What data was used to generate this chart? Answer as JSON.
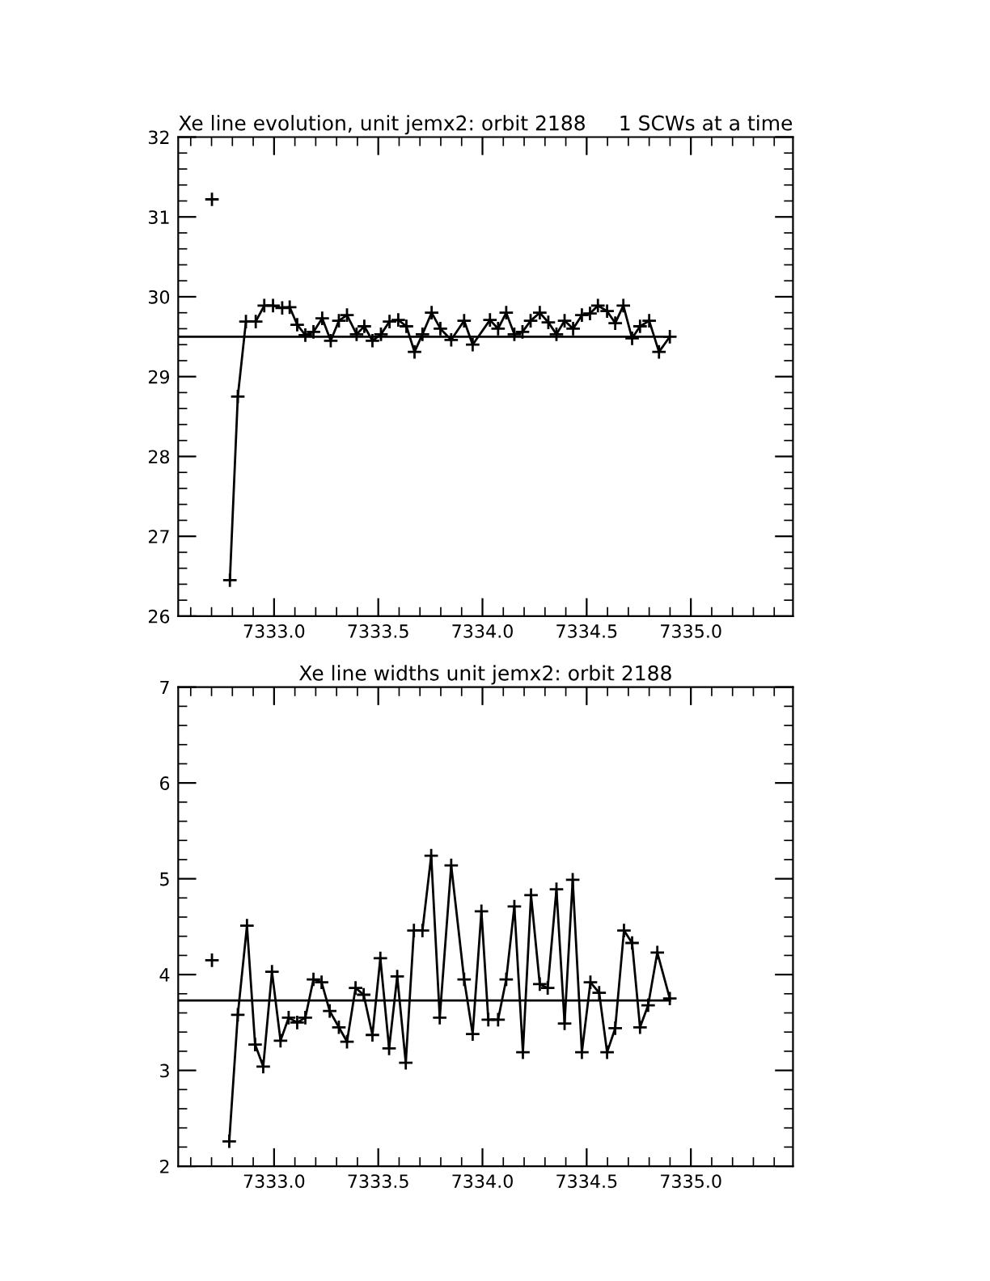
{
  "chart_data": [
    {
      "type": "line",
      "title": "Xe line evolution, unit jemx2: orbit 2188",
      "subtitle": "1 SCWs at a time",
      "xlim": [
        7332.54,
        7335.49
      ],
      "xticks": [
        {
          "value": 7333.0,
          "label": "7333.0"
        },
        {
          "value": 7333.5,
          "label": "7333.5"
        },
        {
          "value": 7334.0,
          "label": "7334.0"
        },
        {
          "value": 7334.5,
          "label": "7334.5"
        },
        {
          "value": 7335.0,
          "label": "7335.0"
        }
      ],
      "ylim": [
        26,
        32
      ],
      "yticks": [
        26,
        27,
        28,
        29,
        30,
        31,
        32
      ],
      "grid": false,
      "series": [
        {
          "color": "#000000",
          "marker": "cross",
          "x": [
            7332.702,
            7332.73,
            7332.788,
            7332.826,
            7332.865,
            7332.912,
            7332.953,
            7332.995,
            7333.039,
            7333.075,
            7333.111,
            7333.15,
            7333.189,
            7333.231,
            7333.272,
            7333.311,
            7333.35,
            7333.396,
            7333.433,
            7333.472,
            7333.513,
            7333.554,
            7333.596,
            7333.635,
            7333.674,
            7333.712,
            7333.756,
            7333.798,
            7333.85,
            7333.912,
            7333.953,
            7334.036,
            7334.075,
            7334.114,
            7334.153,
            7334.192,
            7334.231,
            7334.275,
            7334.316,
            7334.355,
            7334.394,
            7334.435,
            7334.477,
            7334.516,
            7334.554,
            7334.598,
            7334.637,
            7334.676,
            7334.718,
            7334.756,
            7334.8,
            7334.847,
            7334.899
          ],
          "values": [
            31.22,
            null,
            26.45,
            28.75,
            29.69,
            29.69,
            29.89,
            29.89,
            29.86,
            29.87,
            29.65,
            29.52,
            29.56,
            29.73,
            29.45,
            29.7,
            29.77,
            29.53,
            29.63,
            29.45,
            29.53,
            29.69,
            29.71,
            29.63,
            29.31,
            29.53,
            29.8,
            29.6,
            29.46,
            29.7,
            29.4,
            29.71,
            29.6,
            29.8,
            29.53,
            29.56,
            29.7,
            29.8,
            29.68,
            29.53,
            29.7,
            29.6,
            29.77,
            29.79,
            29.89,
            29.82,
            29.67,
            29.89,
            29.48,
            29.63,
            29.7,
            29.31,
            29.5
          ]
        },
        {
          "color": "#000000",
          "marker": "none",
          "x": [
            7332.54,
            7334.899
          ],
          "values": [
            29.5,
            29.5
          ]
        }
      ]
    },
    {
      "type": "line",
      "title": "Xe line widths unit jemx2: orbit 2188",
      "xlim": [
        7332.54,
        7335.49
      ],
      "xticks": [
        {
          "value": 7333.0,
          "label": "7333.0"
        },
        {
          "value": 7333.5,
          "label": "7333.5"
        },
        {
          "value": 7334.0,
          "label": "7334.0"
        },
        {
          "value": 7334.5,
          "label": "7334.5"
        },
        {
          "value": 7335.0,
          "label": "7335.0"
        }
      ],
      "ylim": [
        2,
        7
      ],
      "yticks": [
        2,
        3,
        4,
        5,
        6,
        7
      ],
      "grid": false,
      "series": [
        {
          "color": "#000000",
          "marker": "cross",
          "x": [
            7332.702,
            7332.73,
            7332.785,
            7332.826,
            7332.87,
            7332.909,
            7332.948,
            7332.99,
            7333.031,
            7333.07,
            7333.111,
            7333.15,
            7333.189,
            7333.228,
            7333.267,
            7333.311,
            7333.35,
            7333.391,
            7333.43,
            7333.472,
            7333.51,
            7333.552,
            7333.591,
            7333.632,
            7333.671,
            7333.712,
            7333.754,
            7333.795,
            7333.85,
            7333.912,
            7333.953,
            7333.995,
            7334.028,
            7334.075,
            7334.114,
            7334.153,
            7334.194,
            7334.233,
            7334.275,
            7334.313,
            7334.355,
            7334.394,
            7334.433,
            7334.477,
            7334.518,
            7334.56,
            7334.598,
            7334.637,
            7334.679,
            7334.718,
            7334.756,
            7334.795,
            7334.839,
            7334.899
          ],
          "values": [
            4.15,
            null,
            2.26,
            3.58,
            4.51,
            3.27,
            3.04,
            4.03,
            3.31,
            3.55,
            3.5,
            3.55,
            3.95,
            3.92,
            3.62,
            3.45,
            3.3,
            3.86,
            3.79,
            3.37,
            4.17,
            3.23,
            3.98,
            3.08,
            4.46,
            4.46,
            5.24,
            3.55,
            5.14,
            3.95,
            3.38,
            4.66,
            3.53,
            3.53,
            3.95,
            4.71,
            3.19,
            4.83,
            3.9,
            3.86,
            4.89,
            3.49,
            4.99,
            3.19,
            3.92,
            3.81,
            3.19,
            3.44,
            4.46,
            4.33,
            3.45,
            3.68,
            4.23,
            3.75
          ]
        },
        {
          "color": "#000000",
          "marker": "none",
          "x": [
            7332.54,
            7334.899
          ],
          "values": [
            3.73,
            3.73
          ]
        }
      ]
    }
  ]
}
